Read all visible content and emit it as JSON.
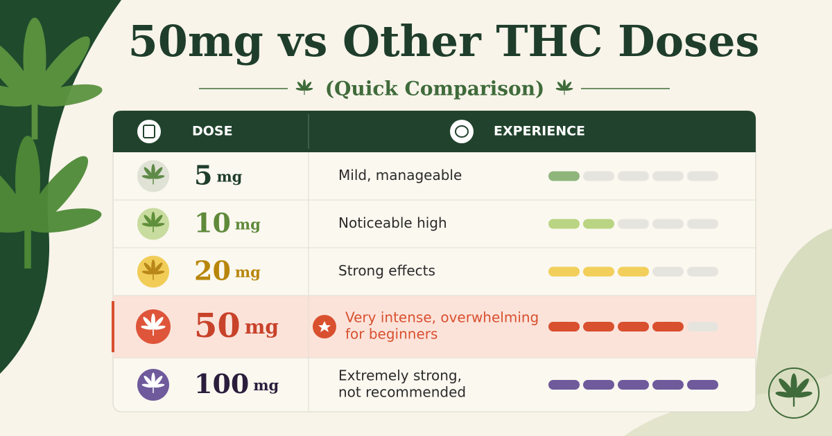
{
  "header": {
    "title": "50mg vs Other THC Doses",
    "subtitle": "(Quick Comparison)"
  },
  "table": {
    "columns": [
      "DOSE",
      "EXPERIENCE"
    ],
    "intensity_max": 5,
    "empty_color": "#e6e4de",
    "rows": [
      {
        "dose": "5",
        "unit": "mg",
        "experience": [
          "Mild, manageable"
        ],
        "intensity": 1,
        "color": "#8fb57a",
        "badge_color": "#dfe2d4",
        "leaf_color": "#5f8a48",
        "text_color": "#1f3d2b",
        "highlight": false
      },
      {
        "dose": "10",
        "unit": "mg",
        "experience": [
          "Noticeable high"
        ],
        "intensity": 2,
        "color": "#b9d482",
        "badge_color": "#c9dc9f",
        "leaf_color": "#5f8f3a",
        "text_color": "#5f8a3a",
        "highlight": false
      },
      {
        "dose": "20",
        "unit": "mg",
        "experience": [
          "Strong effects"
        ],
        "intensity": 3,
        "color": "#f2cf5b",
        "badge_color": "#f1cd58",
        "leaf_color": "#b9861a",
        "text_color": "#b8860b",
        "highlight": false
      },
      {
        "dose": "50",
        "unit": "mg",
        "experience": [
          "Very intense, overwhelming",
          "for beginners"
        ],
        "intensity": 4,
        "color": "#d9502f",
        "badge_color": "#de553a",
        "leaf_color": "#ffffff",
        "text_color": "#c8422a",
        "highlight": true
      },
      {
        "dose": "100",
        "unit": "mg",
        "experience": [
          "Extremely strong,",
          "not recommended"
        ],
        "intensity": 5,
        "color": "#6f5a9c",
        "badge_color": "#6f5a9c",
        "leaf_color": "#ffffff",
        "text_color": "#2b1e3c",
        "highlight": false
      }
    ]
  }
}
